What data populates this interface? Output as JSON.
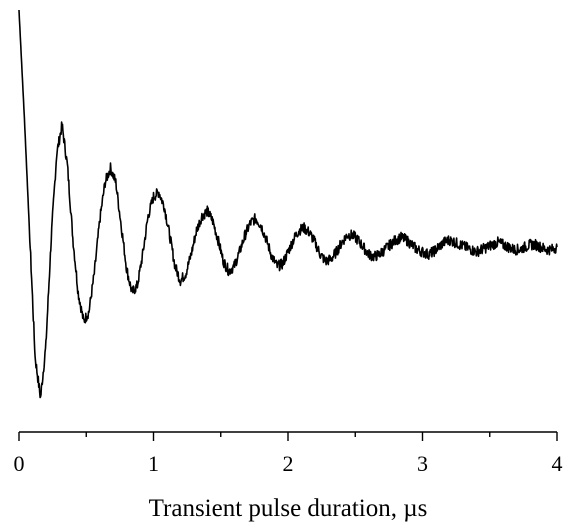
{
  "chart_data": {
    "type": "line",
    "title": "",
    "xlabel": "Transient pulse duration, µs",
    "ylabel": "",
    "xlim": [
      0,
      4
    ],
    "x_ticks": [
      "0",
      "1",
      "2",
      "3",
      "4"
    ],
    "y_axis_shown": false,
    "grid": false,
    "series": [
      {
        "color": "#000000",
        "x": [
          0.0,
          0.04,
          0.08,
          0.12,
          0.16,
          0.2,
          0.24,
          0.28,
          0.32,
          0.36,
          0.4,
          0.44,
          0.48,
          0.52,
          0.56,
          0.6,
          0.64,
          0.68,
          0.72,
          0.76,
          0.8,
          0.84,
          0.88,
          0.92,
          0.96,
          1.0,
          1.04,
          1.08,
          1.12,
          1.16,
          1.2,
          1.24,
          1.28,
          1.32,
          1.36,
          1.4,
          1.44,
          1.48,
          1.52,
          1.56,
          1.6,
          1.64,
          1.68,
          1.72,
          1.76,
          1.8,
          1.84,
          1.88,
          1.92,
          1.96,
          2.0,
          2.04,
          2.08,
          2.12,
          2.16,
          2.2,
          2.24,
          2.28,
          2.32,
          2.36,
          2.4,
          2.44,
          2.48,
          2.52,
          2.56,
          2.6,
          2.64,
          2.68,
          2.72,
          2.76,
          2.8,
          2.84,
          2.88,
          2.92,
          2.96,
          3.0,
          3.04,
          3.08,
          3.12,
          3.16,
          3.2,
          3.24,
          3.28,
          3.32,
          3.36,
          3.4,
          3.44,
          3.48,
          3.52,
          3.56,
          3.6,
          3.64,
          3.68,
          3.72,
          3.76,
          3.8,
          3.84,
          3.88,
          3.92,
          3.96,
          4.0
        ],
        "y": [
          1.0,
          0.55,
          0.05,
          -0.45,
          -0.62,
          -0.4,
          0.05,
          0.4,
          0.52,
          0.35,
          0.05,
          -0.18,
          -0.3,
          -0.26,
          -0.1,
          0.12,
          0.28,
          0.34,
          0.28,
          0.1,
          -0.08,
          -0.18,
          -0.15,
          -0.02,
          0.14,
          0.22,
          0.24,
          0.18,
          0.06,
          -0.07,
          -0.13,
          -0.1,
          -0.02,
          0.08,
          0.14,
          0.16,
          0.12,
          0.04,
          -0.05,
          -0.09,
          -0.07,
          -0.01,
          0.06,
          0.11,
          0.13,
          0.1,
          0.04,
          -0.03,
          -0.07,
          -0.06,
          -0.01,
          0.04,
          0.08,
          0.09,
          0.07,
          0.03,
          -0.02,
          -0.05,
          -0.04,
          -0.01,
          0.03,
          0.06,
          0.06,
          0.04,
          0.01,
          -0.02,
          -0.03,
          -0.02,
          0.0,
          0.02,
          0.04,
          0.05,
          0.04,
          0.02,
          0.0,
          -0.01,
          -0.02,
          -0.01,
          0.01,
          0.03,
          0.04,
          0.03,
          0.02,
          0.01,
          0.0,
          -0.01,
          0.0,
          0.01,
          0.02,
          0.03,
          0.02,
          0.01,
          0.0,
          0.0,
          0.01,
          0.02,
          0.02,
          0.01,
          0.0,
          0.0,
          0.01
        ]
      }
    ]
  }
}
